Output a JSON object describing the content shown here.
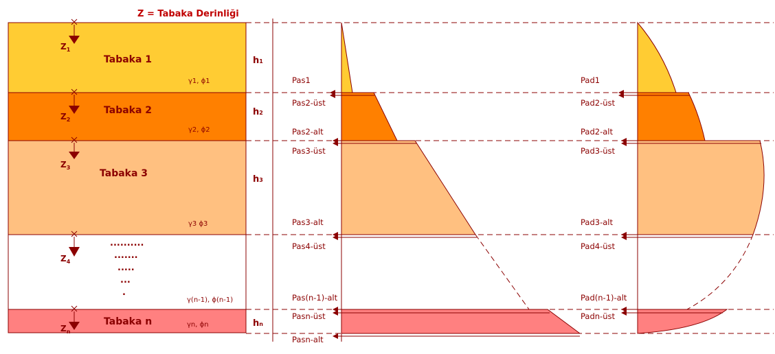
{
  "title": "Z = Tabaka Derinliği",
  "colors": {
    "layer1": "#ffcc33",
    "layer2": "#ff8000",
    "layer3": "#ffc080",
    "layern": "#ff8080",
    "line": "#8b0000",
    "title": "#c00000"
  },
  "layers": [
    {
      "name": "Tabaka 1",
      "z_main": "Z",
      "z_sub": "1",
      "h_main": "h",
      "h_sub": "1",
      "param": "γ1, ϕ1"
    },
    {
      "name": "Tabaka 2",
      "z_main": "Z",
      "z_sub": "2",
      "h_main": "h",
      "h_sub": "2",
      "param": "γ2, ϕ2"
    },
    {
      "name": "Tabaka 3",
      "z_main": "Z",
      "z_sub": "3",
      "h_main": "h",
      "h_sub": "3",
      "param": "γ3 ϕ3"
    },
    {
      "name": "",
      "z_main": "Z",
      "z_sub": "4",
      "h_main": "",
      "h_sub": "",
      "param": "γ(n-1), ϕ(n-1)"
    },
    {
      "name": "Tabaka n",
      "z_main": "Z",
      "z_sub": "n",
      "h_main": "h",
      "h_sub": "n",
      "param": "γn, ϕn"
    }
  ],
  "dots": [
    "..........",
    ".......",
    ".....",
    "...",
    "."
  ],
  "passive_labels": [
    {
      "main": "P",
      "sub": "as1"
    },
    {
      "main": "P",
      "sub": "as2-üst"
    },
    {
      "main": "P",
      "sub": "as2-alt"
    },
    {
      "main": "P",
      "sub": "as3-üst"
    },
    {
      "main": "P",
      "sub": "as3-alt"
    },
    {
      "main": "P",
      "sub": "as4-üst"
    },
    {
      "main": "P",
      "sub": "as(n-1)-alt"
    },
    {
      "main": "P",
      "sub": "asn-üst"
    },
    {
      "main": "P",
      "sub": "asn-alt"
    }
  ],
  "active_labels": [
    {
      "main": "P",
      "sub": "ad1"
    },
    {
      "main": "P",
      "sub": "ad2-üst"
    },
    {
      "main": "P",
      "sub": "ad2-alt"
    },
    {
      "main": "P",
      "sub": "ad3-üst"
    },
    {
      "main": "P",
      "sub": "ad3-alt"
    },
    {
      "main": "P",
      "sub": "ad4-üst"
    },
    {
      "main": "P",
      "sub": "ad(n-1)-alt"
    },
    {
      "main": "P",
      "sub": "adn-üst"
    }
  ]
}
